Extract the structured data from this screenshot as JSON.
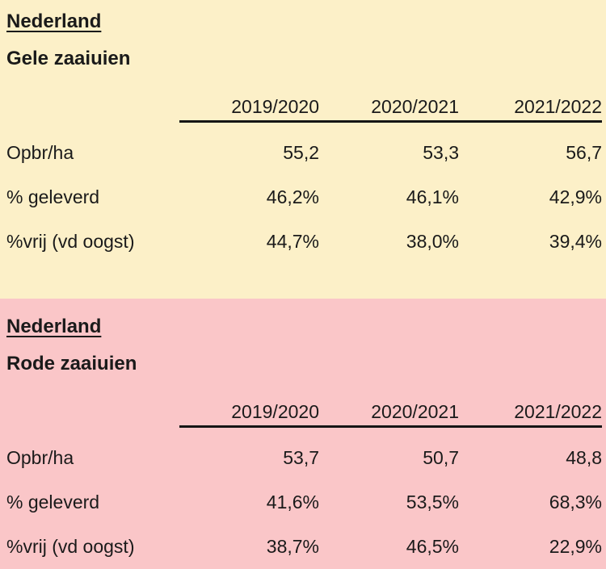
{
  "page": {
    "text_color": "#1a1a1a",
    "rule_color": "#151515",
    "section_top_bg": "#FCF0C8",
    "section_bottom_bg": "#FAC6C8"
  },
  "chart_data": [
    {
      "type": "table",
      "title": "Nederland",
      "subtitle": "Gele zaaiuien",
      "bg": "#FCF0C8",
      "columns": [
        "2019/2020",
        "2020/2021",
        "2021/2022"
      ],
      "rows": [
        {
          "label": "Opbr/ha",
          "values": [
            "55,2",
            "53,3",
            "56,7"
          ]
        },
        {
          "label": "% geleverd",
          "values": [
            "46,2%",
            "46,1%",
            "42,9%"
          ]
        },
        {
          "label": "%vrij (vd oogst)",
          "values": [
            "44,7%",
            "38,0%",
            "39,4%"
          ]
        }
      ]
    },
    {
      "type": "table",
      "title": "Nederland",
      "subtitle": "Rode zaaiuien",
      "bg": "#FAC6C8",
      "columns": [
        "2019/2020",
        "2020/2021",
        "2021/2022"
      ],
      "rows": [
        {
          "label": "Opbr/ha",
          "values": [
            "53,7",
            "50,7",
            "48,8"
          ]
        },
        {
          "label": "% geleverd",
          "values": [
            "41,6%",
            "53,5%",
            "68,3%"
          ]
        },
        {
          "label": "%vrij (vd oogst)",
          "values": [
            "38,7%",
            "46,5%",
            "22,9%"
          ]
        }
      ]
    }
  ]
}
